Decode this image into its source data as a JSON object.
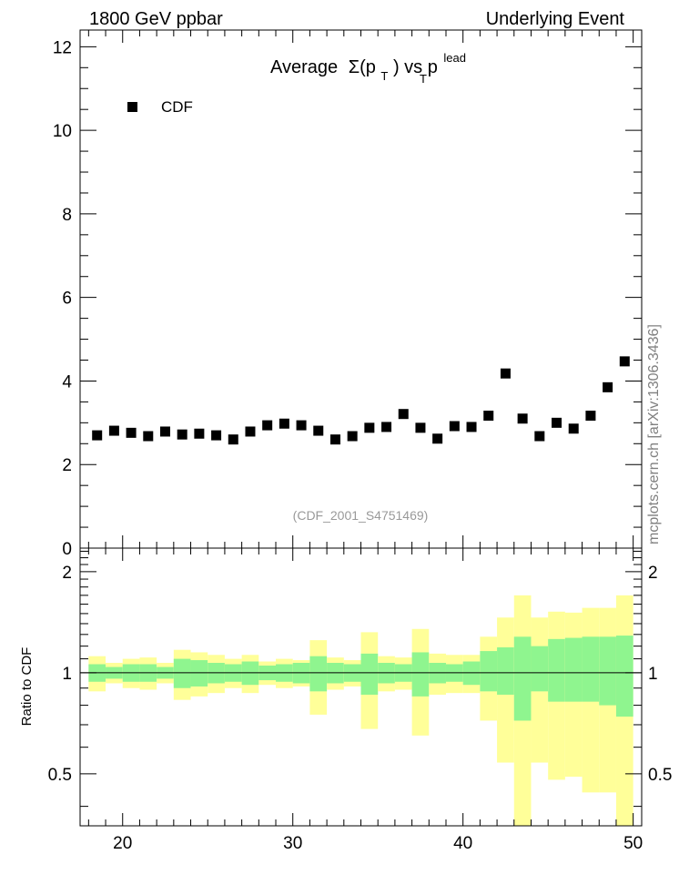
{
  "header": {
    "left": "1800 GeV ppbar",
    "right": "Underlying Event"
  },
  "side_text": "mcplots.cern.ch [arXiv:1306.3436]",
  "chart_data": {
    "type": "scatter",
    "title_main": "Average",
    "title_sigma": "Σ(p",
    "title_sigma_sub": "T",
    "title_vs": ") vs p",
    "title_sup": "lead",
    "title_sub": "T",
    "legend": {
      "label": "CDF",
      "placement": "top-left"
    },
    "analysis_id": "(CDF_2001_S4751469)",
    "xlim": [
      17.5,
      50.5
    ],
    "main_ylim": [
      0,
      12.4
    ],
    "main_yticks": [
      0,
      2,
      4,
      6,
      8,
      10,
      12
    ],
    "main_yticklabels": [
      "0",
      "2",
      "4",
      "6",
      "8",
      "10",
      "12"
    ],
    "ratio_ylim": [
      0.35,
      2.35
    ],
    "ratio_yticks": [
      0.5,
      1,
      2
    ],
    "ratio_yticklabels": [
      "0.5",
      "1",
      "2"
    ],
    "ratio_ylabel": "Ratio to CDF",
    "xticks": [
      20,
      30,
      40,
      50
    ],
    "xticklabels": [
      "20",
      "30",
      "40",
      "50"
    ],
    "colors": {
      "marker": "#000000",
      "band_inner": "#8ff58f",
      "band_outer": "#ffff99"
    },
    "series": [
      {
        "name": "CDF",
        "x": [
          18.5,
          19.5,
          20.5,
          21.5,
          22.5,
          23.5,
          24.5,
          25.5,
          26.5,
          27.5,
          28.5,
          29.5,
          30.5,
          31.5,
          32.5,
          33.5,
          34.5,
          35.5,
          36.5,
          37.5,
          38.5,
          39.5,
          40.5,
          41.5,
          42.5,
          43.5,
          44.5,
          45.5,
          46.5,
          47.5,
          48.5,
          49.5
        ],
        "y": [
          2.7,
          2.81,
          2.76,
          2.68,
          2.79,
          2.72,
          2.74,
          2.7,
          2.6,
          2.79,
          2.94,
          2.98,
          2.94,
          2.81,
          2.6,
          2.68,
          2.88,
          2.9,
          3.21,
          2.88,
          2.62,
          2.92,
          2.9,
          3.17,
          4.18,
          3.1,
          2.68,
          3.0,
          2.86,
          3.17,
          3.85,
          4.47
        ]
      }
    ],
    "ratio_bands": {
      "inner_lo": [
        0.94,
        0.96,
        0.94,
        0.94,
        0.96,
        0.9,
        0.91,
        0.93,
        0.94,
        0.92,
        0.95,
        0.94,
        0.93,
        0.88,
        0.93,
        0.94,
        0.86,
        0.93,
        0.94,
        0.85,
        0.93,
        0.94,
        0.92,
        0.88,
        0.86,
        0.72,
        0.88,
        0.82,
        0.82,
        0.82,
        0.8,
        0.74
      ],
      "inner_hi": [
        1.06,
        1.04,
        1.06,
        1.06,
        1.04,
        1.1,
        1.09,
        1.07,
        1.06,
        1.08,
        1.05,
        1.06,
        1.07,
        1.12,
        1.07,
        1.06,
        1.14,
        1.07,
        1.06,
        1.15,
        1.07,
        1.06,
        1.08,
        1.16,
        1.19,
        1.28,
        1.2,
        1.26,
        1.27,
        1.28,
        1.28,
        1.29
      ],
      "outer_lo": [
        0.88,
        0.93,
        0.9,
        0.89,
        0.93,
        0.83,
        0.85,
        0.87,
        0.9,
        0.87,
        0.92,
        0.9,
        0.91,
        0.75,
        0.89,
        0.91,
        0.68,
        0.88,
        0.89,
        0.65,
        0.86,
        0.87,
        0.87,
        0.72,
        0.54,
        0.3,
        0.54,
        0.48,
        0.49,
        0.44,
        0.44,
        0.3
      ],
      "outer_hi": [
        1.12,
        1.07,
        1.1,
        1.11,
        1.07,
        1.17,
        1.15,
        1.13,
        1.1,
        1.13,
        1.08,
        1.1,
        1.09,
        1.25,
        1.11,
        1.09,
        1.32,
        1.12,
        1.11,
        1.35,
        1.14,
        1.13,
        1.13,
        1.28,
        1.46,
        1.7,
        1.46,
        1.52,
        1.51,
        1.56,
        1.56,
        1.7
      ]
    }
  }
}
